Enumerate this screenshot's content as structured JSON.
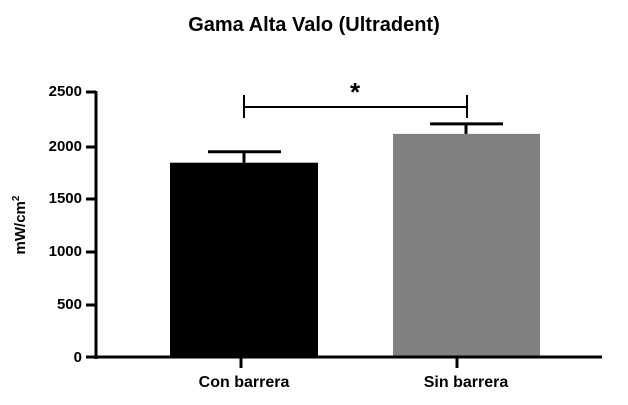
{
  "chart_data": {
    "type": "bar",
    "title": "Gama Alta Valo (Ultradent)",
    "xlabel": "",
    "ylabel": "mW/cm²",
    "ylabel_base": "mW/cm",
    "ylabel_sup": "2",
    "ylim": [
      0,
      2500
    ],
    "yticks": [
      "2500",
      "2000",
      "1500",
      "1000",
      "500",
      "0"
    ],
    "categories": [
      "Con barrera",
      "Sin barrera"
    ],
    "values": [
      1833,
      2105
    ],
    "error_bars": [
      103,
      94
    ],
    "colors": [
      "#000000",
      "#808080"
    ],
    "grid": false,
    "legend": null,
    "annotations": [
      {
        "type": "significance-bracket",
        "between": [
          "Con barrera",
          "Sin barrera"
        ],
        "label": "*"
      }
    ]
  }
}
